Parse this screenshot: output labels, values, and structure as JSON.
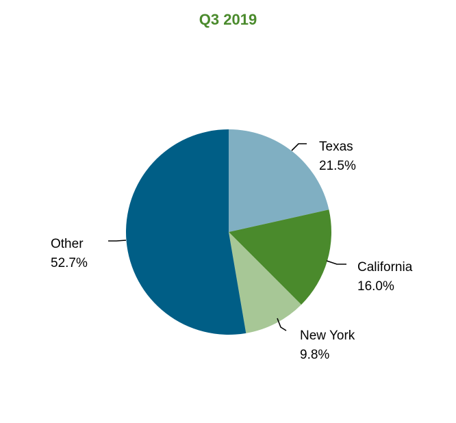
{
  "chart_data": {
    "type": "pie",
    "title": "Q3 2019",
    "title_color": "#4a8a2c",
    "slices": [
      {
        "label": "Texas",
        "value": 21.5,
        "display": "21.5%",
        "color": "#80afc2"
      },
      {
        "label": "California",
        "value": 16.0,
        "display": "16.0%",
        "color": "#4a8a2c"
      },
      {
        "label": "New York",
        "value": 9.8,
        "display": "9.8%",
        "color": "#a7c796"
      },
      {
        "label": "Other",
        "value": 52.7,
        "display": "52.7%",
        "color": "#005e86"
      }
    ],
    "start_angle": "12 o'clock",
    "direction": "clockwise",
    "legend": "none"
  }
}
